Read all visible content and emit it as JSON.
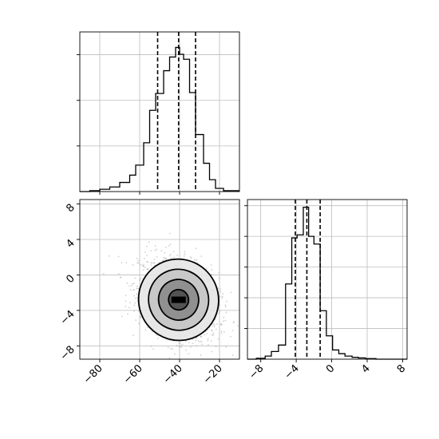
{
  "chart_data": [
    {
      "type": "histogram",
      "panel": "top-left",
      "variable_axis": "x",
      "xlim": [
        -90,
        -10
      ],
      "grid": true,
      "bins": [
        {
          "x0": -90,
          "x1": -85,
          "y": 0.0
        },
        {
          "x0": -85,
          "x1": -80,
          "y": 0.2
        },
        {
          "x0": -80,
          "x1": -75,
          "y": 0.5
        },
        {
          "x0": -75,
          "x1": -70,
          "y": 1.0
        },
        {
          "x0": -70,
          "x1": -65,
          "y": 2.0
        },
        {
          "x0": -65,
          "x1": -62,
          "y": 3.6
        },
        {
          "x0": -62,
          "x1": -58,
          "y": 5.8
        },
        {
          "x0": -58,
          "x1": -55,
          "y": 10.7
        },
        {
          "x0": -55,
          "x1": -52,
          "y": 17.8
        },
        {
          "x0": -52,
          "x1": -48,
          "y": 21.5
        },
        {
          "x0": -48,
          "x1": -45,
          "y": 26.5
        },
        {
          "x0": -45,
          "x1": -42,
          "y": 29.5
        },
        {
          "x0": -42,
          "x1": -40,
          "y": 31.6
        },
        {
          "x0": -40,
          "x1": -38,
          "y": 30.1
        },
        {
          "x0": -38,
          "x1": -35,
          "y": 29.0
        },
        {
          "x0": -35,
          "x1": -32,
          "y": 21.7
        },
        {
          "x0": -32,
          "x1": -28,
          "y": 12.5
        },
        {
          "x0": -28,
          "x1": -25,
          "y": 6.2
        },
        {
          "x0": -25,
          "x1": -22,
          "y": 2.6
        },
        {
          "x0": -22,
          "x1": -18,
          "y": 0.7
        },
        {
          "x0": -18,
          "x1": -10,
          "y": 0.2
        }
      ],
      "ylim": [
        0,
        35
      ],
      "quantiles": [
        -51,
        -40.5,
        -32
      ],
      "ytick_values": [
        10,
        20,
        30
      ],
      "show_tick_labels": false
    },
    {
      "type": "scatter-density",
      "panel": "bottom-left",
      "xlim": [
        -90,
        -10
      ],
      "ylim": [
        -9.5,
        8.5
      ],
      "grid": true,
      "center": [
        -40.5,
        -2.8
      ],
      "spread": [
        10,
        2.3
      ],
      "correlation": -0.3,
      "contour_radii_sigma": [
        0.5,
        1.0,
        1.5,
        2.0
      ],
      "xticks": [
        -80,
        -60,
        -40,
        -20
      ],
      "xtick_labels": [
        "−80",
        "−60",
        "−40",
        "−20"
      ],
      "yticks": [
        8,
        4,
        0,
        -4,
        -8
      ],
      "ytick_labels": [
        "8",
        "4",
        "0",
        "−4",
        "−8"
      ]
    },
    {
      "type": "histogram",
      "panel": "bottom-right",
      "variable_axis": "x",
      "xlim": [
        -9.5,
        8.5
      ],
      "grid": true,
      "bins": [
        {
          "x0": -9.5,
          "x1": -8.5,
          "y": 0.0
        },
        {
          "x0": -8.5,
          "x1": -7.5,
          "y": 0.3
        },
        {
          "x0": -7.5,
          "x1": -6.8,
          "y": 1.0
        },
        {
          "x0": -6.8,
          "x1": -6.0,
          "y": 2.5
        },
        {
          "x0": -6.0,
          "x1": -5.2,
          "y": 4.6
        },
        {
          "x0": -5.2,
          "x1": -4.5,
          "y": 24.5
        },
        {
          "x0": -4.5,
          "x1": -3.9,
          "y": 39.5
        },
        {
          "x0": -3.9,
          "x1": -3.2,
          "y": 40.5
        },
        {
          "x0": -3.2,
          "x1": -2.6,
          "y": 49.5
        },
        {
          "x0": -2.6,
          "x1": -2.0,
          "y": 40.0
        },
        {
          "x0": -2.0,
          "x1": -1.3,
          "y": 37.5
        },
        {
          "x0": -1.3,
          "x1": -0.6,
          "y": 15.8
        },
        {
          "x0": -0.6,
          "x1": 0.1,
          "y": 7.6
        },
        {
          "x0": 0.1,
          "x1": 0.8,
          "y": 3.0
        },
        {
          "x0": 0.8,
          "x1": 1.5,
          "y": 1.8
        },
        {
          "x0": 1.5,
          "x1": 2.3,
          "y": 1.0
        },
        {
          "x0": 2.3,
          "x1": 3.0,
          "y": 0.6
        },
        {
          "x0": 3.0,
          "x1": 3.8,
          "y": 0.4
        },
        {
          "x0": 3.8,
          "x1": 5.0,
          "y": 0.2
        },
        {
          "x0": 5.0,
          "x1": 8.5,
          "y": 0.0
        }
      ],
      "ylim": [
        0,
        52
      ],
      "quantiles": [
        -4.1,
        -2.8,
        -1.3
      ],
      "ytick_values": [
        10,
        20,
        30,
        40,
        50
      ],
      "xticks": [
        -8,
        -4,
        0,
        4,
        8
      ],
      "xtick_labels": [
        "−8",
        "−4",
        "0",
        "4",
        "8"
      ]
    }
  ]
}
